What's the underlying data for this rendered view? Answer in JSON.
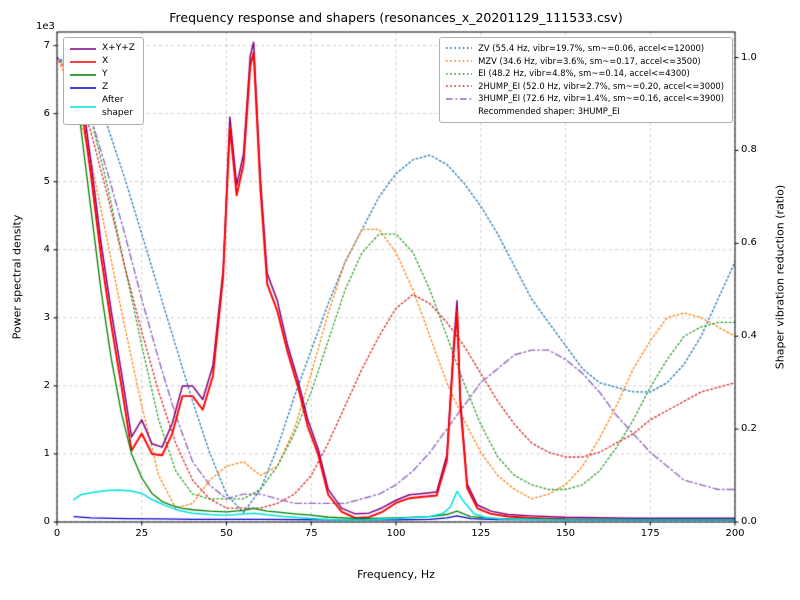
{
  "title": "Frequency response and shapers (resonances_x_20201129_111533.csv)",
  "axes": {
    "x_label": "Frequency, Hz",
    "left_label": "Power spectral density",
    "right_label": "Shaper vibration reduction (ratio)",
    "left_offset_text": "1e3"
  },
  "legend_psd": {
    "items": [
      {
        "label": "X+Y+Z",
        "color": "#800080",
        "style": "solid"
      },
      {
        "label": "X",
        "color": "#ff0000",
        "style": "solid"
      },
      {
        "label": "Y",
        "color": "#008000",
        "style": "solid"
      },
      {
        "label": "Z",
        "color": "#0000cd",
        "style": "solid"
      },
      {
        "label": "After\nshaper",
        "color": "#00e0e0",
        "style": "solid"
      }
    ]
  },
  "legend_shapers": {
    "items": [
      {
        "label": "ZV (55.4 Hz, vibr=19.7%, sm~=0.06, accel<=12000)",
        "color": "#1f77b4",
        "style": "dotted"
      },
      {
        "label": "MZV (34.6 Hz, vibr=3.6%, sm~=0.17, accel<=3500)",
        "color": "#ff7f0e",
        "style": "dotted"
      },
      {
        "label": "EI (48.2 Hz, vibr=4.8%, sm~=0.14, accel<=4300)",
        "color": "#2ca02c",
        "style": "dotted"
      },
      {
        "label": "2HUMP_EI (52.0 Hz, vibr=2.7%, sm~=0.20, accel<=3000)",
        "color": "#d62728",
        "style": "dotted"
      },
      {
        "label": "3HUMP_EI (72.6 Hz, vibr=1.4%, sm~=0.16, accel<=3900)",
        "color": "#9467bd",
        "style": "dashdot"
      }
    ],
    "note": "Recommended shaper: 3HUMP_EI"
  },
  "chart_data": {
    "type": "line",
    "title": "Frequency response and shapers (resonances_x_20201129_111533.csv)",
    "xlabel": "Frequency, Hz",
    "ylabel_left": "Power spectral density",
    "ylabel_right": "Shaper vibration reduction (ratio)",
    "xlim": [
      0,
      200
    ],
    "ylim_left": [
      0,
      7200
    ],
    "ylim_right": [
      0,
      1.055
    ],
    "x_ticks": [
      0,
      25,
      50,
      75,
      100,
      125,
      150,
      175,
      200
    ],
    "left_ticks": [
      0,
      1000,
      2000,
      3000,
      4000,
      5000,
      6000,
      7000
    ],
    "right_ticks": [
      0.0,
      0.2,
      0.4,
      0.6,
      0.8,
      1.0
    ],
    "grid": true,
    "recommended_shaper": "3HUMP_EI",
    "series": [
      {
        "name": "ZV",
        "axis": "right",
        "color": "#1f77b4",
        "style": "dotted",
        "width": 1.3,
        "x": [
          0,
          5,
          10,
          15,
          20,
          25,
          30,
          35,
          40,
          45,
          50,
          55,
          60,
          65,
          70,
          75,
          80,
          85,
          90,
          95,
          100,
          105,
          110,
          115,
          120,
          125,
          130,
          135,
          140,
          145,
          150,
          155,
          160,
          165,
          170,
          175,
          180,
          185,
          190,
          195,
          200
        ],
        "y": [
          1.0,
          0.98,
          0.93,
          0.85,
          0.74,
          0.62,
          0.5,
          0.38,
          0.26,
          0.15,
          0.06,
          0.02,
          0.07,
          0.16,
          0.27,
          0.37,
          0.47,
          0.56,
          0.63,
          0.7,
          0.75,
          0.78,
          0.79,
          0.77,
          0.73,
          0.68,
          0.62,
          0.55,
          0.48,
          0.43,
          0.38,
          0.33,
          0.3,
          0.29,
          0.28,
          0.28,
          0.3,
          0.34,
          0.4,
          0.48,
          0.56
        ]
      },
      {
        "name": "MZV",
        "axis": "right",
        "color": "#ff7f0e",
        "style": "dotted",
        "width": 1.3,
        "x": [
          0,
          5,
          10,
          15,
          20,
          25,
          30,
          35,
          40,
          45,
          50,
          55,
          60,
          65,
          70,
          75,
          80,
          85,
          90,
          95,
          100,
          105,
          110,
          115,
          120,
          125,
          130,
          135,
          140,
          145,
          150,
          155,
          160,
          165,
          170,
          175,
          180,
          185,
          190,
          195,
          200
        ],
        "y": [
          1.0,
          0.92,
          0.78,
          0.6,
          0.42,
          0.25,
          0.1,
          0.03,
          0.04,
          0.09,
          0.12,
          0.13,
          0.1,
          0.12,
          0.2,
          0.32,
          0.45,
          0.56,
          0.63,
          0.63,
          0.58,
          0.5,
          0.4,
          0.3,
          0.22,
          0.15,
          0.1,
          0.07,
          0.05,
          0.06,
          0.08,
          0.12,
          0.18,
          0.25,
          0.33,
          0.39,
          0.44,
          0.45,
          0.44,
          0.42,
          0.4
        ]
      },
      {
        "name": "EI",
        "axis": "right",
        "color": "#2ca02c",
        "style": "dotted",
        "width": 1.3,
        "x": [
          0,
          5,
          10,
          15,
          20,
          25,
          30,
          35,
          40,
          45,
          50,
          55,
          60,
          65,
          70,
          75,
          80,
          85,
          90,
          95,
          100,
          105,
          110,
          115,
          120,
          125,
          130,
          135,
          140,
          145,
          150,
          155,
          160,
          165,
          170,
          175,
          180,
          185,
          190,
          195,
          200
        ],
        "y": [
          1.0,
          0.96,
          0.87,
          0.72,
          0.55,
          0.38,
          0.22,
          0.11,
          0.06,
          0.05,
          0.05,
          0.05,
          0.07,
          0.12,
          0.19,
          0.28,
          0.39,
          0.5,
          0.58,
          0.62,
          0.62,
          0.58,
          0.5,
          0.4,
          0.3,
          0.21,
          0.14,
          0.1,
          0.08,
          0.07,
          0.07,
          0.08,
          0.11,
          0.16,
          0.22,
          0.29,
          0.35,
          0.4,
          0.42,
          0.43,
          0.43
        ]
      },
      {
        "name": "2HUMP_EI",
        "axis": "right",
        "color": "#d62728",
        "style": "dotted",
        "width": 1.3,
        "x": [
          0,
          5,
          10,
          15,
          20,
          25,
          30,
          35,
          40,
          45,
          50,
          55,
          60,
          65,
          70,
          75,
          80,
          85,
          90,
          95,
          100,
          105,
          110,
          115,
          120,
          125,
          130,
          135,
          140,
          145,
          150,
          155,
          160,
          165,
          170,
          175,
          180,
          185,
          190,
          195,
          200
        ],
        "y": [
          1.0,
          0.95,
          0.84,
          0.7,
          0.55,
          0.41,
          0.28,
          0.17,
          0.09,
          0.05,
          0.03,
          0.03,
          0.03,
          0.04,
          0.06,
          0.1,
          0.17,
          0.25,
          0.33,
          0.4,
          0.46,
          0.49,
          0.47,
          0.43,
          0.38,
          0.32,
          0.26,
          0.21,
          0.17,
          0.15,
          0.14,
          0.14,
          0.15,
          0.17,
          0.19,
          0.22,
          0.24,
          0.26,
          0.28,
          0.29,
          0.3
        ]
      },
      {
        "name": "3HUMP_EI",
        "axis": "right",
        "color": "#9467bd",
        "style": "dashdot",
        "width": 1.4,
        "x": [
          0,
          5,
          10,
          15,
          20,
          25,
          30,
          35,
          40,
          45,
          50,
          55,
          60,
          65,
          70,
          75,
          80,
          85,
          90,
          95,
          100,
          105,
          110,
          115,
          120,
          125,
          130,
          135,
          140,
          145,
          150,
          155,
          160,
          165,
          170,
          175,
          180,
          185,
          190,
          195,
          200
        ],
        "y": [
          1.0,
          0.96,
          0.87,
          0.75,
          0.62,
          0.48,
          0.35,
          0.23,
          0.13,
          0.08,
          0.05,
          0.06,
          0.06,
          0.05,
          0.04,
          0.04,
          0.04,
          0.04,
          0.05,
          0.06,
          0.08,
          0.11,
          0.15,
          0.2,
          0.25,
          0.3,
          0.33,
          0.36,
          0.37,
          0.37,
          0.35,
          0.32,
          0.28,
          0.23,
          0.19,
          0.15,
          0.12,
          0.09,
          0.08,
          0.07,
          0.07
        ]
      },
      {
        "name": "X+Y+Z",
        "axis": "left",
        "color": "#800080",
        "style": "solid",
        "width": 1.5,
        "x": [
          5,
          7,
          10,
          13,
          16,
          19,
          22,
          25,
          28,
          31,
          34,
          37,
          40,
          43,
          46,
          49,
          51,
          53,
          55,
          57,
          58,
          60,
          62,
          65,
          68,
          71,
          74,
          77,
          80,
          84,
          88,
          92,
          96,
          100,
          104,
          108,
          112,
          115,
          117,
          118,
          119,
          121,
          124,
          128,
          133,
          140,
          150,
          170,
          200
        ],
        "y": [
          6950,
          6400,
          5300,
          4100,
          3100,
          2200,
          1250,
          1500,
          1150,
          1100,
          1450,
          2000,
          2000,
          1800,
          2300,
          3700,
          5950,
          4950,
          5400,
          6850,
          7050,
          5050,
          3650,
          3250,
          2600,
          2100,
          1500,
          1080,
          480,
          200,
          120,
          130,
          210,
          320,
          400,
          420,
          440,
          980,
          2600,
          3250,
          1800,
          560,
          250,
          160,
          110,
          90,
          70,
          55,
          55
        ]
      },
      {
        "name": "X",
        "axis": "left",
        "color": "#ff0000",
        "style": "solid",
        "width": 1.9,
        "x": [
          5,
          7,
          10,
          13,
          16,
          19,
          22,
          25,
          28,
          31,
          34,
          37,
          40,
          43,
          46,
          49,
          51,
          53,
          55,
          57,
          58,
          60,
          62,
          65,
          68,
          71,
          74,
          77,
          80,
          84,
          88,
          92,
          96,
          100,
          104,
          108,
          112,
          115,
          117,
          118,
          119,
          121,
          124,
          128,
          133,
          140,
          150,
          170,
          200
        ],
        "y": [
          6800,
          6200,
          5100,
          3900,
          2900,
          2000,
          1050,
          1300,
          1000,
          980,
          1300,
          1850,
          1850,
          1650,
          2150,
          3600,
          5800,
          4800,
          5250,
          6700,
          6900,
          4900,
          3500,
          3100,
          2500,
          2000,
          1400,
          1000,
          400,
          150,
          60,
          70,
          150,
          280,
          350,
          370,
          390,
          900,
          2500,
          3100,
          1700,
          500,
          200,
          120,
          80,
          60,
          40,
          30,
          30
        ]
      },
      {
        "name": "Y",
        "axis": "left",
        "color": "#008000",
        "style": "solid",
        "width": 1.3,
        "x": [
          5,
          7,
          10,
          13,
          16,
          19,
          22,
          25,
          28,
          31,
          34,
          37,
          40,
          45,
          50,
          55,
          58,
          62,
          66,
          70,
          75,
          80,
          90,
          100,
          110,
          115,
          118,
          122,
          130,
          150,
          200
        ],
        "y": [
          6500,
          5800,
          4600,
          3400,
          2400,
          1600,
          1000,
          650,
          420,
          300,
          240,
          200,
          180,
          160,
          150,
          170,
          200,
          160,
          140,
          120,
          100,
          70,
          50,
          60,
          80,
          110,
          160,
          80,
          50,
          40,
          40
        ]
      },
      {
        "name": "Z",
        "axis": "left",
        "color": "#0000cd",
        "style": "solid",
        "width": 1.3,
        "x": [
          5,
          10,
          20,
          30,
          40,
          50,
          60,
          70,
          80,
          90,
          100,
          110,
          115,
          118,
          122,
          130,
          150,
          200
        ],
        "y": [
          80,
          60,
          50,
          45,
          40,
          40,
          38,
          35,
          30,
          30,
          32,
          40,
          60,
          90,
          50,
          35,
          30,
          30
        ]
      },
      {
        "name": "After shaper",
        "axis": "left",
        "color": "#00e0e0",
        "style": "solid",
        "width": 1.5,
        "x": [
          5,
          7,
          10,
          14,
          18,
          22,
          25,
          28,
          32,
          36,
          40,
          45,
          50,
          54,
          58,
          62,
          66,
          70,
          75,
          80,
          90,
          100,
          105,
          110,
          114,
          116,
          118,
          120,
          123,
          127,
          132,
          140,
          150,
          170,
          200
        ],
        "y": [
          330,
          400,
          430,
          460,
          470,
          455,
          420,
          330,
          240,
          170,
          130,
          110,
          100,
          115,
          130,
          105,
          85,
          70,
          50,
          35,
          30,
          50,
          65,
          80,
          130,
          220,
          450,
          300,
          120,
          60,
          45,
          35,
          30,
          28,
          28
        ]
      }
    ]
  }
}
